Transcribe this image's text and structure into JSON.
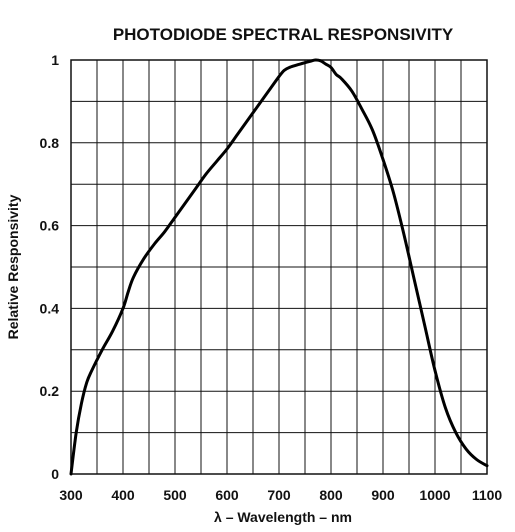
{
  "chart_data": {
    "type": "line",
    "title": "PHOTODIODE SPECTRAL RESPONSIVITY",
    "xlabel": "λ – Wavelength – nm",
    "ylabel": "Relative Responsivity",
    "xlim": [
      300,
      1100
    ],
    "ylim": [
      0,
      1
    ],
    "x_ticks": [
      300,
      400,
      500,
      600,
      700,
      800,
      900,
      1000,
      1100
    ],
    "y_ticks": [
      0,
      0.2,
      0.4,
      0.6,
      0.8,
      1
    ],
    "y_tick_labels": [
      "0",
      "0.2",
      "0.4",
      "0.6",
      "0.8",
      "1"
    ],
    "x_minor_step": 50,
    "y_minor_step": 0.1,
    "grid": true,
    "series": [
      {
        "color": "#000000",
        "x": [
          300,
          310,
          320,
          330,
          340,
          360,
          380,
          400,
          410,
          420,
          440,
          460,
          480,
          500,
          520,
          540,
          560,
          580,
          600,
          620,
          640,
          660,
          680,
          700,
          710,
          720,
          740,
          760,
          770,
          780,
          790,
          800,
          810,
          820,
          840,
          860,
          880,
          900,
          920,
          940,
          960,
          980,
          1000,
          1020,
          1040,
          1060,
          1080,
          1100
        ],
        "y": [
          0.0,
          0.1,
          0.17,
          0.22,
          0.25,
          0.3,
          0.345,
          0.4,
          0.44,
          0.475,
          0.52,
          0.555,
          0.585,
          0.62,
          0.655,
          0.69,
          0.725,
          0.755,
          0.785,
          0.82,
          0.855,
          0.89,
          0.925,
          0.96,
          0.975,
          0.982,
          0.99,
          0.997,
          1.0,
          0.998,
          0.99,
          0.982,
          0.965,
          0.955,
          0.925,
          0.88,
          0.83,
          0.76,
          0.68,
          0.58,
          0.47,
          0.36,
          0.25,
          0.16,
          0.1,
          0.06,
          0.035,
          0.02
        ]
      }
    ]
  }
}
